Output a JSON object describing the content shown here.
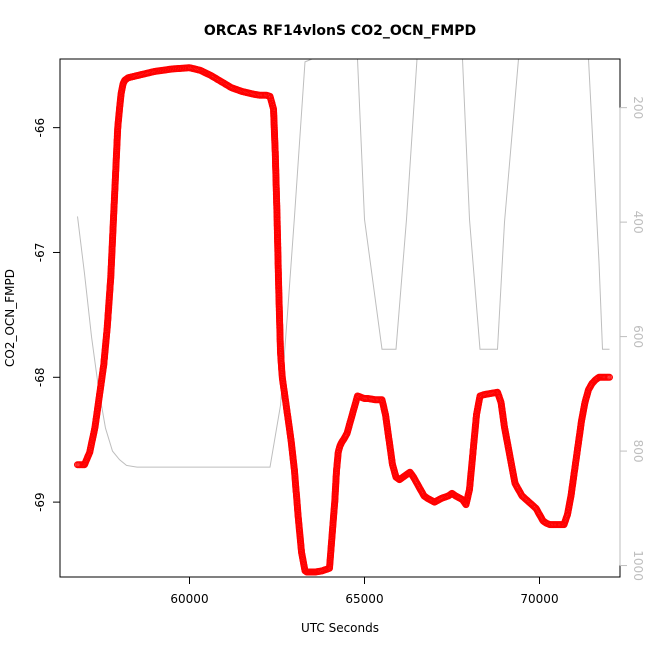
{
  "chart_data": {
    "type": "scatter",
    "title": "ORCAS RF14vlonS CO2_OCN_FMPD",
    "xlabel": "UTC Seconds",
    "ylabel": "CO2_OCN_FMPD",
    "xlim": [
      56300,
      72300
    ],
    "ylim": [
      -69.6,
      -65.45
    ],
    "x_ticks": [
      "60000",
      "65000",
      "70000"
    ],
    "y_ticks": [
      "-66",
      "-67",
      "-68",
      "-69"
    ],
    "y2_ticks": [
      "200",
      "400",
      "600",
      "800",
      "1000"
    ],
    "y2lim": [
      1020,
      115
    ],
    "grid": false,
    "colors": {
      "points": "#ff0000",
      "altitude_line": "#bebebe"
    },
    "series": [
      {
        "marker": "open-circle",
        "x": [
          56800,
          57000,
          57150,
          57300,
          57450,
          57550,
          57650,
          57700,
          57750,
          57800,
          57850,
          57900,
          57950,
          58000,
          58050,
          58100,
          58150,
          58250,
          58400,
          58700,
          59000,
          59500,
          60000,
          60300,
          60600,
          60900,
          61200,
          61500,
          61800,
          62000,
          62200,
          62300,
          62400,
          62450,
          62500,
          62550,
          62600,
          62650,
          62700,
          62800,
          62900,
          63000,
          63100,
          63200,
          63300,
          63350,
          63400,
          63450,
          63500,
          63550,
          63600,
          63800,
          64000,
          64150,
          64200,
          64250,
          64300,
          64350,
          64400,
          64500,
          64600,
          64700,
          64800,
          64900,
          65000,
          65100,
          65300,
          65500,
          65600,
          65700,
          65800,
          65900,
          66000,
          66100,
          66200,
          66300,
          66400,
          66500,
          66600,
          66700,
          66800,
          67000,
          67200,
          67400,
          67500,
          67600,
          67800,
          67900,
          68000,
          68100,
          68200,
          68300,
          68400,
          68600,
          68800,
          68900,
          69000,
          69100,
          69200,
          69300,
          69400,
          69500,
          69700,
          69900,
          70000,
          70100,
          70200,
          70300,
          70400,
          70600,
          70700,
          70800,
          70900,
          71000,
          71100,
          71200,
          71300,
          71400,
          71500,
          71600,
          71700,
          71900,
          72000
        ],
        "y": [
          -68.7,
          -68.7,
          -68.6,
          -68.4,
          -68.1,
          -67.9,
          -67.6,
          -67.4,
          -67.2,
          -66.9,
          -66.6,
          -66.3,
          -66.0,
          -65.85,
          -65.72,
          -65.65,
          -65.62,
          -65.6,
          -65.59,
          -65.57,
          -65.55,
          -65.53,
          -65.52,
          -65.54,
          -65.58,
          -65.63,
          -65.68,
          -65.71,
          -65.73,
          -65.74,
          -65.74,
          -65.75,
          -65.85,
          -66.2,
          -66.7,
          -67.3,
          -67.8,
          -68.0,
          -68.1,
          -68.3,
          -68.5,
          -68.75,
          -69.1,
          -69.4,
          -69.55,
          -69.56,
          -69.56,
          -69.56,
          -69.56,
          -69.56,
          -69.56,
          -69.55,
          -69.53,
          -69.0,
          -68.75,
          -68.6,
          -68.55,
          -68.52,
          -68.5,
          -68.45,
          -68.35,
          -68.25,
          -68.15,
          -68.16,
          -68.17,
          -68.17,
          -68.18,
          -68.18,
          -68.3,
          -68.5,
          -68.7,
          -68.8,
          -68.82,
          -68.8,
          -68.78,
          -68.76,
          -68.8,
          -68.85,
          -68.9,
          -68.95,
          -68.97,
          -69.0,
          -68.97,
          -68.95,
          -68.93,
          -68.95,
          -68.98,
          -69.02,
          -68.9,
          -68.6,
          -68.3,
          -68.15,
          -68.14,
          -68.13,
          -68.12,
          -68.2,
          -68.4,
          -68.55,
          -68.7,
          -68.85,
          -68.9,
          -68.95,
          -69.0,
          -69.05,
          -69.1,
          -69.15,
          -69.17,
          -69.18,
          -69.18,
          -69.18,
          -69.18,
          -69.1,
          -68.95,
          -68.75,
          -68.55,
          -68.35,
          -68.2,
          -68.1,
          -68.05,
          -68.02,
          -68.0,
          -68.0,
          -68.0
        ]
      },
      {
        "marker": "line",
        "axis": "right",
        "x": [
          56800,
          57000,
          57200,
          57400,
          57600,
          57800,
          58000,
          58200,
          58500,
          59000,
          60000,
          61000,
          62000,
          62300,
          62600,
          62800,
          63000,
          63300,
          63500,
          63800,
          64300,
          64600,
          64800,
          65000,
          65500,
          65600,
          65900,
          66200,
          66500,
          67000,
          67500,
          67800,
          68000,
          68300,
          68600,
          68800,
          69000,
          69400,
          69800,
          70000,
          70300,
          70600,
          71000,
          71400,
          71700,
          71800,
          71900,
          72000
        ],
        "y": [
          390,
          490,
          600,
          690,
          760,
          800,
          815,
          825,
          828,
          828,
          828,
          828,
          828,
          828,
          720,
          560,
          390,
          120,
          115,
          115,
          115,
          115,
          115,
          395,
          622,
          622,
          622,
          395,
          115,
          115,
          115,
          115,
          395,
          622,
          622,
          622,
          400,
          115,
          115,
          115,
          115,
          115,
          115,
          115,
          470,
          622,
          622,
          622
        ]
      }
    ]
  }
}
